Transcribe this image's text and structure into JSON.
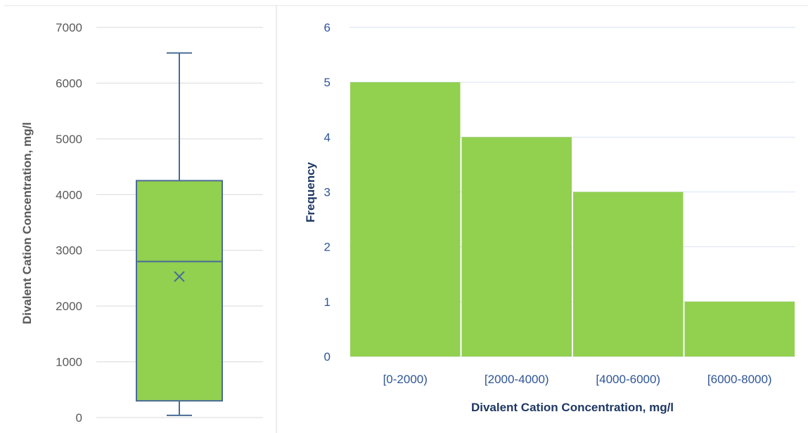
{
  "chart_data": [
    {
      "type": "box",
      "title": "",
      "xlabel": "",
      "ylabel": "Divalent Cation Concentration, mg/l",
      "ylim": [
        0,
        7000
      ],
      "yticks": [
        "0",
        "1000",
        "2000",
        "3000",
        "4000",
        "5000",
        "6000",
        "7000"
      ],
      "grid": true,
      "min": 40,
      "q1": 300,
      "median": 2800,
      "mean": 2530,
      "q3": 4250,
      "max": 6540,
      "colors": {
        "box_fill": "#92d050",
        "box_line": "#4a6b96",
        "grid": "#d9d9d9",
        "axis_text": "#595959"
      }
    },
    {
      "type": "bar",
      "title": "",
      "xlabel": "Divalent Cation Concentration, mg/l",
      "ylabel": "Frequency",
      "categories": [
        "[0-2000)",
        "[2000-4000)",
        "[4000-6000)",
        "[6000-8000)"
      ],
      "values": [
        5,
        4,
        3,
        1
      ],
      "ylim": [
        0,
        6
      ],
      "yticks": [
        "0",
        "1",
        "2",
        "3",
        "4",
        "5",
        "6"
      ],
      "grid": true,
      "colors": {
        "bar": "#92d050",
        "grid": "#d9e2f3",
        "axis_text": "#1f3864",
        "tick_text": "#2f5597"
      }
    }
  ]
}
